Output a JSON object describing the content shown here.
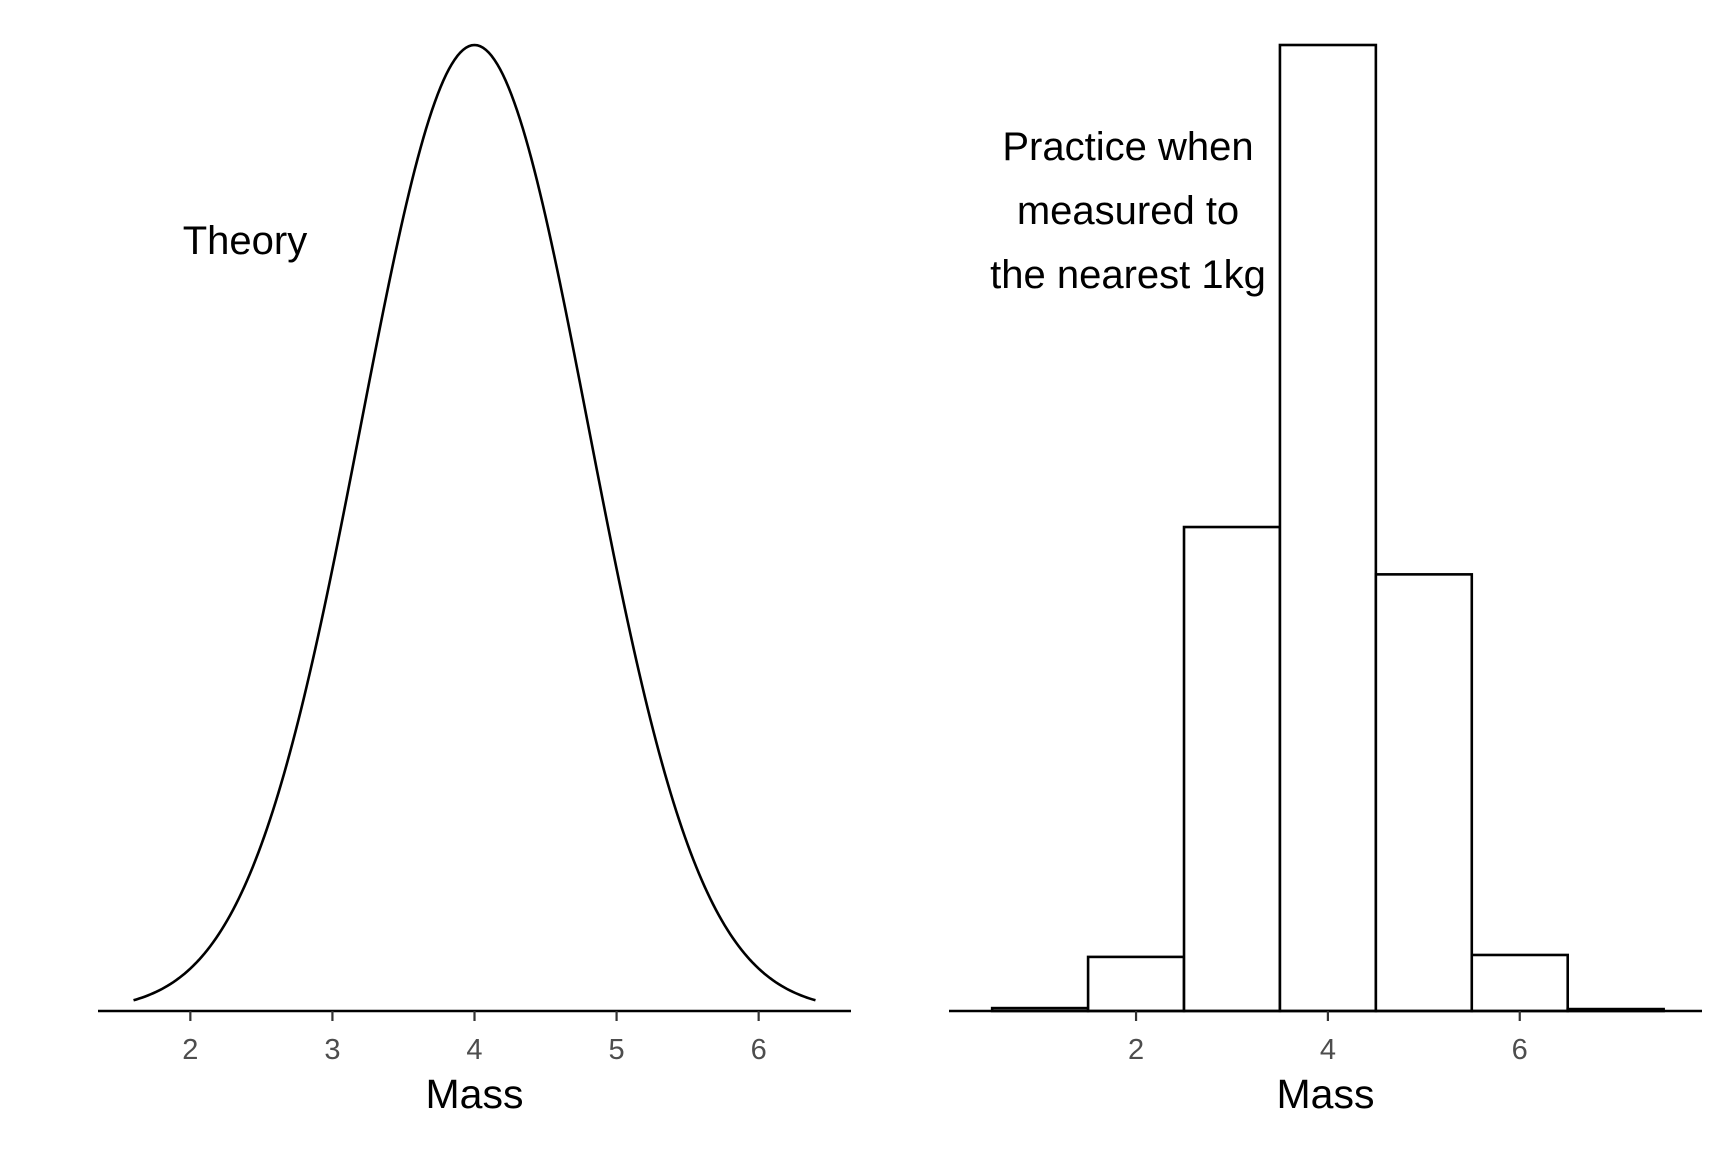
{
  "chart_data": [
    {
      "type": "line",
      "xlabel": "Mass",
      "annotation": [
        "Theory"
      ],
      "distribution": {
        "mean": 4,
        "sd": 0.8
      },
      "xlim": [
        1.35,
        6.65
      ],
      "x_ticks": [
        2,
        3,
        4,
        5,
        6
      ],
      "x_range": [
        1.6,
        6.4
      ],
      "y_axis_shown": false,
      "grid": false,
      "line_color": "#000000"
    },
    {
      "type": "bar",
      "xlabel": "Mass",
      "annotation": [
        "Practice when",
        "measured to",
        "the nearest 1kg"
      ],
      "categories": [
        "1",
        "2",
        "3",
        "4",
        "5",
        "6",
        "7"
      ],
      "values": [
        0.003,
        0.056,
        0.501,
        1.0,
        0.452,
        0.058,
        0.002
      ],
      "bin_width": 1,
      "xlim": [
        0.05,
        7.9
      ],
      "x_ticks": [
        2,
        4,
        6
      ],
      "y_axis_shown": false,
      "grid": false,
      "bar_fill": "#ffffff",
      "bar_stroke": "#000000"
    }
  ]
}
